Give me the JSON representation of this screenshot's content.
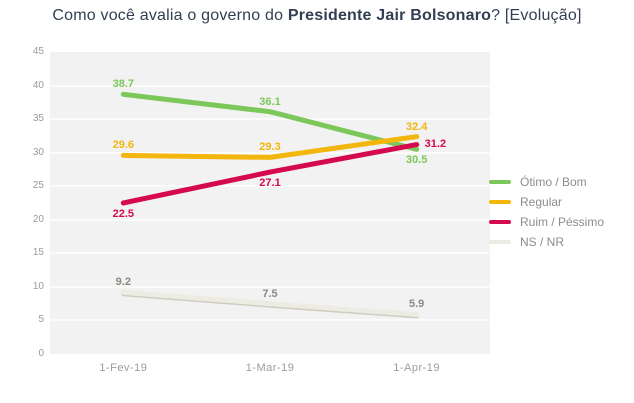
{
  "title": {
    "part1": "Como você avalia o governo do ",
    "part2_bold": "Presidente Jair Bolsonaro",
    "part3": "? [Evolução]"
  },
  "colors": {
    "title_text": "#323E52",
    "plot_background": "#F2F2F2",
    "gridline": "#FBFBFB",
    "axis_text": "#9B9B9B",
    "legend_text": "#8C8C8C"
  },
  "chart_data": {
    "type": "line",
    "title": "Como você avalia o governo do Presidente Jair Bolsonaro? [Evolução]",
    "categories": [
      "1-Fev-19",
      "1-Mar-19",
      "1-Apr-19"
    ],
    "series": [
      {
        "name": "Ótimo / Bom",
        "color": "#7CC75A",
        "values": [
          38.7,
          36.1,
          30.5
        ],
        "label_pos": [
          "above",
          "above",
          "below"
        ]
      },
      {
        "name": "Regular",
        "color": "#F2B60D",
        "values": [
          29.6,
          29.3,
          32.4
        ],
        "label_pos": [
          "above",
          "above",
          "above"
        ]
      },
      {
        "name": "Ruim / Péssimo",
        "color": "#D5094F",
        "values": [
          22.5,
          27.1,
          31.2
        ],
        "label_pos": [
          "below",
          "below",
          "right"
        ]
      },
      {
        "name": "NS / NR",
        "color": "#EDECE3",
        "shadow_color": "#CFCDC0",
        "label_color": "#8B8A82",
        "values": [
          9.2,
          7.5,
          5.9
        ],
        "label_pos": [
          "above",
          "above",
          "above"
        ]
      }
    ],
    "xlabel": "",
    "ylabel": "",
    "ylim": [
      0,
      45
    ],
    "ytick_step": 5,
    "grid": true,
    "legend_position": "right"
  }
}
